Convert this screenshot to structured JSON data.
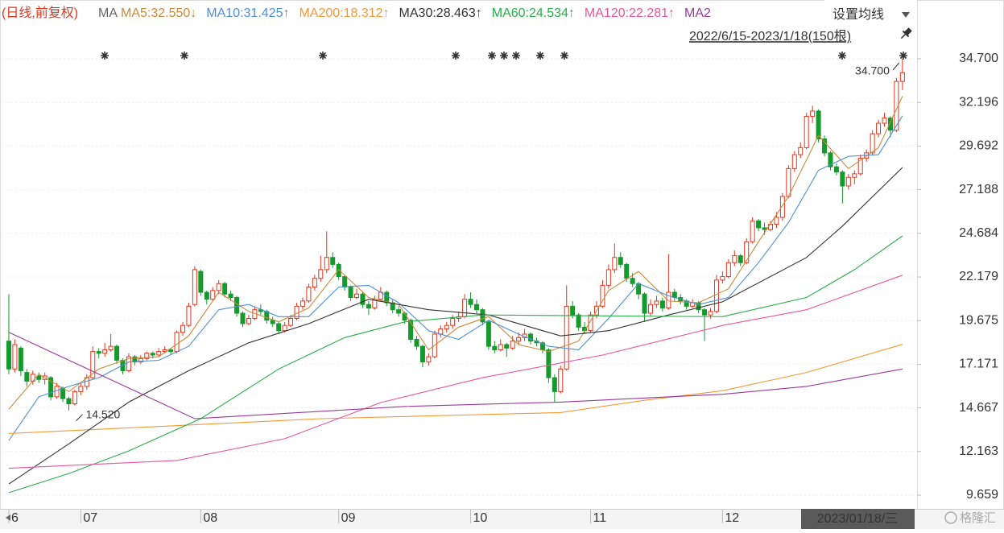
{
  "period_label": "(日线,前复权)",
  "ma_label": "MA",
  "settings_label": "设置均线",
  "range_label": "2022/6/15-2023/1/18(150根)",
  "watermark": "格隆汇",
  "chart_data": {
    "type": "candlestick",
    "cursor_label": "2023/01/18/三",
    "xlim": [
      -0.4,
      151.3
    ],
    "xticks": [
      {
        "value": 0,
        "label": "6"
      },
      {
        "value": 12,
        "label": "07"
      },
      {
        "value": 32,
        "label": "08"
      },
      {
        "value": 55,
        "label": "09"
      },
      {
        "value": 77,
        "label": "10"
      },
      {
        "value": 97,
        "label": "11"
      },
      {
        "value": 119,
        "label": "12"
      }
    ],
    "ylim": [
      8.966,
      35.532
    ],
    "yticks": [
      {
        "value": 34.7,
        "label": "34.700"
      },
      32.196,
      29.692,
      27.188,
      24.684,
      22.179,
      19.675,
      17.171,
      14.667,
      12.163,
      9.659
    ],
    "grid": true,
    "up_color": "#e8341c",
    "down_color": "#159a2c",
    "ohlc": [
      [
        18.5,
        21.2,
        16.6,
        16.9
      ],
      [
        16.9,
        18.6,
        16.7,
        18.3
      ],
      [
        18.1,
        18.2,
        16.5,
        16.8
      ],
      [
        16.7,
        16.9,
        15.9,
        16.2
      ],
      [
        16.2,
        16.8,
        16.0,
        16.6
      ],
      [
        16.5,
        16.7,
        16.1,
        16.3
      ],
      [
        16.3,
        16.7,
        16.0,
        16.5
      ],
      [
        16.4,
        16.5,
        15.1,
        15.3
      ],
      [
        15.3,
        16.1,
        15.2,
        15.9
      ],
      [
        15.8,
        15.9,
        15.0,
        15.2
      ],
      [
        15.2,
        15.3,
        14.52,
        14.9
      ],
      [
        14.9,
        15.7,
        14.8,
        15.6
      ],
      [
        15.6,
        16.1,
        15.4,
        15.9
      ],
      [
        15.9,
        16.6,
        15.7,
        16.4
      ],
      [
        16.4,
        18.2,
        16.3,
        17.9
      ],
      [
        17.9,
        18.1,
        17.5,
        17.8
      ],
      [
        17.8,
        18.4,
        17.6,
        18.0
      ],
      [
        18.0,
        18.9,
        17.9,
        18.2
      ],
      [
        18.2,
        18.3,
        17.2,
        17.4
      ],
      [
        17.4,
        17.5,
        16.6,
        16.8
      ],
      [
        16.8,
        17.8,
        16.7,
        17.6
      ],
      [
        17.6,
        17.7,
        17.1,
        17.3
      ],
      [
        17.3,
        17.7,
        17.2,
        17.5
      ],
      [
        17.5,
        17.9,
        17.4,
        17.8
      ],
      [
        17.8,
        17.9,
        17.5,
        17.7
      ],
      [
        17.7,
        18.1,
        17.6,
        17.9
      ],
      [
        17.9,
        18.2,
        17.8,
        18.0
      ],
      [
        18.0,
        18.1,
        17.7,
        17.9
      ],
      [
        17.9,
        19.1,
        17.8,
        19.0
      ],
      [
        19.0,
        19.6,
        18.8,
        19.4
      ],
      [
        19.4,
        20.7,
        19.3,
        20.5
      ],
      [
        20.6,
        22.8,
        20.5,
        22.6
      ],
      [
        22.5,
        22.6,
        21.1,
        21.3
      ],
      [
        21.3,
        21.4,
        20.6,
        20.9
      ],
      [
        20.9,
        21.6,
        20.8,
        21.4
      ],
      [
        21.4,
        22.0,
        21.2,
        21.8
      ],
      [
        21.8,
        21.9,
        21.0,
        21.2
      ],
      [
        21.2,
        21.4,
        20.8,
        21.0
      ],
      [
        21.0,
        21.1,
        19.9,
        20.1
      ],
      [
        20.1,
        20.2,
        19.3,
        19.5
      ],
      [
        19.5,
        20.0,
        19.4,
        19.8
      ],
      [
        19.8,
        20.5,
        19.7,
        20.3
      ],
      [
        20.3,
        20.6,
        20.0,
        20.2
      ],
      [
        20.2,
        20.3,
        19.5,
        19.7
      ],
      [
        19.7,
        19.9,
        19.3,
        19.5
      ],
      [
        19.5,
        19.6,
        18.9,
        19.1
      ],
      [
        19.1,
        19.6,
        19.0,
        19.4
      ],
      [
        19.4,
        20.0,
        19.3,
        19.8
      ],
      [
        19.8,
        20.7,
        19.7,
        20.5
      ],
      [
        20.5,
        21.0,
        20.3,
        20.8
      ],
      [
        20.8,
        21.8,
        20.7,
        21.6
      ],
      [
        21.6,
        22.3,
        21.4,
        22.1
      ],
      [
        22.1,
        23.4,
        21.9,
        22.6
      ],
      [
        22.6,
        24.8,
        22.4,
        23.3
      ],
      [
        23.3,
        23.6,
        22.7,
        22.9
      ],
      [
        22.9,
        23.0,
        22.0,
        22.2
      ],
      [
        22.2,
        22.3,
        21.4,
        21.6
      ],
      [
        21.6,
        21.7,
        20.8,
        21.0
      ],
      [
        21.0,
        21.5,
        20.9,
        21.2
      ],
      [
        21.2,
        21.3,
        20.4,
        20.6
      ],
      [
        20.6,
        20.8,
        20.0,
        20.4
      ],
      [
        20.4,
        21.1,
        20.3,
        20.9
      ],
      [
        20.9,
        21.6,
        20.8,
        21.3
      ],
      [
        21.3,
        21.4,
        20.5,
        20.7
      ],
      [
        20.7,
        20.9,
        20.1,
        20.3
      ],
      [
        20.3,
        20.5,
        19.9,
        20.1
      ],
      [
        20.1,
        20.2,
        19.5,
        19.7
      ],
      [
        19.7,
        19.8,
        18.4,
        18.6
      ],
      [
        18.6,
        18.8,
        18.0,
        18.2
      ],
      [
        18.2,
        18.3,
        17.0,
        17.3
      ],
      [
        17.3,
        17.8,
        17.1,
        17.6
      ],
      [
        17.6,
        19.1,
        17.5,
        18.9
      ],
      [
        18.9,
        19.4,
        18.7,
        19.2
      ],
      [
        19.2,
        19.6,
        19.0,
        19.4
      ],
      [
        19.4,
        20.0,
        19.2,
        19.8
      ],
      [
        19.8,
        20.2,
        19.6,
        19.9
      ],
      [
        19.9,
        21.2,
        19.8,
        20.9
      ],
      [
        20.9,
        21.3,
        20.4,
        20.6
      ],
      [
        20.6,
        20.9,
        20.1,
        20.3
      ],
      [
        20.3,
        20.4,
        19.4,
        19.6
      ],
      [
        19.6,
        19.7,
        18.0,
        18.2
      ],
      [
        18.2,
        18.5,
        17.8,
        18.0
      ],
      [
        18.0,
        18.6,
        17.9,
        18.3
      ],
      [
        18.3,
        18.4,
        17.6,
        18.1
      ],
      [
        18.1,
        18.8,
        18.0,
        18.5
      ],
      [
        18.5,
        19.0,
        18.3,
        18.7
      ],
      [
        18.7,
        19.2,
        18.5,
        18.9
      ],
      [
        18.9,
        19.0,
        18.3,
        18.5
      ],
      [
        18.5,
        18.7,
        18.2,
        18.4
      ],
      [
        18.4,
        18.5,
        17.8,
        18.0
      ],
      [
        18.0,
        18.1,
        16.1,
        16.4
      ],
      [
        16.4,
        16.6,
        15.0,
        15.6
      ],
      [
        15.6,
        17.1,
        15.5,
        16.9
      ],
      [
        16.9,
        21.7,
        16.8,
        20.5
      ],
      [
        20.5,
        20.8,
        19.8,
        20.0
      ],
      [
        20.0,
        20.1,
        19.1,
        19.3
      ],
      [
        19.3,
        19.6,
        18.9,
        19.1
      ],
      [
        19.1,
        20.2,
        19.0,
        20.0
      ],
      [
        20.0,
        20.8,
        19.8,
        20.5
      ],
      [
        20.5,
        22.0,
        20.4,
        21.7
      ],
      [
        21.7,
        22.9,
        21.5,
        22.6
      ],
      [
        22.6,
        24.1,
        22.4,
        23.3
      ],
      [
        23.3,
        23.6,
        22.7,
        22.9
      ],
      [
        22.9,
        23.0,
        21.9,
        22.1
      ],
      [
        22.1,
        22.4,
        21.6,
        21.8
      ],
      [
        21.8,
        21.9,
        20.9,
        21.2
      ],
      [
        21.2,
        21.3,
        19.6,
        20.1
      ],
      [
        20.1,
        20.9,
        19.9,
        20.6
      ],
      [
        20.6,
        21.1,
        20.4,
        20.8
      ],
      [
        20.8,
        21.0,
        20.2,
        20.4
      ],
      [
        20.4,
        23.5,
        20.3,
        21.3
      ],
      [
        21.3,
        21.5,
        20.8,
        21.0
      ],
      [
        21.0,
        21.2,
        20.6,
        20.8
      ],
      [
        20.8,
        20.9,
        20.3,
        20.5
      ],
      [
        20.5,
        20.9,
        20.4,
        20.7
      ],
      [
        20.7,
        20.8,
        20.1,
        20.3
      ],
      [
        20.3,
        20.4,
        18.5,
        20.0
      ],
      [
        20.0,
        20.4,
        19.8,
        20.2
      ],
      [
        20.2,
        22.3,
        20.1,
        22.0
      ],
      [
        22.0,
        22.5,
        21.8,
        22.2
      ],
      [
        22.2,
        23.2,
        22.1,
        23.0
      ],
      [
        23.0,
        23.7,
        22.8,
        23.4
      ],
      [
        23.4,
        23.5,
        22.8,
        23.0
      ],
      [
        23.0,
        24.4,
        22.9,
        24.2
      ],
      [
        24.2,
        25.6,
        24.1,
        25.4
      ],
      [
        25.4,
        25.5,
        24.8,
        25.0
      ],
      [
        25.0,
        25.3,
        24.6,
        24.9
      ],
      [
        24.9,
        25.4,
        24.8,
        25.2
      ],
      [
        25.2,
        25.9,
        25.0,
        25.6
      ],
      [
        25.6,
        27.0,
        25.4,
        26.8
      ],
      [
        26.8,
        28.6,
        26.7,
        28.4
      ],
      [
        28.4,
        29.4,
        28.2,
        29.2
      ],
      [
        29.2,
        29.9,
        29.0,
        29.6
      ],
      [
        29.6,
        31.6,
        29.5,
        31.4
      ],
      [
        31.4,
        32.0,
        31.0,
        31.7
      ],
      [
        31.7,
        31.8,
        29.9,
        30.1
      ],
      [
        30.1,
        30.3,
        29.1,
        29.3
      ],
      [
        29.3,
        29.4,
        28.3,
        28.5
      ],
      [
        28.5,
        28.7,
        28.0,
        28.2
      ],
      [
        28.2,
        28.3,
        26.4,
        27.4
      ],
      [
        27.4,
        28.1,
        27.2,
        27.9
      ],
      [
        27.9,
        28.3,
        27.5,
        28.1
      ],
      [
        28.1,
        29.2,
        28.0,
        29.0
      ],
      [
        29.0,
        29.5,
        28.8,
        29.3
      ],
      [
        29.3,
        30.6,
        29.2,
        30.4
      ],
      [
        30.4,
        31.2,
        30.2,
        31.0
      ],
      [
        31.0,
        31.6,
        30.8,
        31.3
      ],
      [
        31.3,
        31.4,
        30.2,
        30.6
      ],
      [
        30.6,
        33.6,
        30.5,
        33.4
      ],
      [
        33.4,
        34.7,
        32.9,
        33.9
      ]
    ],
    "series": [
      {
        "name": "MA5:32.550↓",
        "color": "#c98a3a",
        "x": [
          0,
          5,
          10,
          15,
          20,
          25,
          30,
          35,
          40,
          45,
          50,
          55,
          60,
          65,
          70,
          75,
          80,
          85,
          90,
          95,
          100,
          105,
          110,
          115,
          120,
          125,
          130,
          135,
          140,
          145,
          149
        ],
        "values": [
          14.6,
          16.6,
          15.6,
          16.9,
          17.5,
          17.6,
          18.8,
          21.3,
          20.2,
          19.6,
          20.4,
          22.6,
          21.0,
          20.6,
          18.0,
          19.3,
          19.9,
          18.3,
          17.9,
          18.5,
          21.4,
          22.5,
          20.8,
          20.7,
          21.5,
          24.2,
          26.8,
          30.3,
          28.4,
          29.6,
          32.55
        ]
      },
      {
        "name": "MA10:31.425↑",
        "color": "#4f8fd8",
        "x": [
          0,
          5,
          10,
          15,
          20,
          25,
          30,
          35,
          40,
          45,
          50,
          55,
          60,
          65,
          70,
          75,
          80,
          85,
          90,
          95,
          100,
          105,
          110,
          115,
          120,
          125,
          130,
          135,
          140,
          145,
          149
        ],
        "values": [
          12.8,
          15.3,
          15.9,
          16.4,
          17.3,
          17.4,
          18.2,
          20.3,
          20.6,
          19.9,
          19.9,
          21.6,
          21.7,
          20.7,
          19.1,
          18.6,
          19.7,
          18.9,
          18.2,
          18.0,
          19.8,
          21.8,
          21.1,
          20.6,
          21.0,
          23.0,
          25.3,
          28.3,
          29.1,
          29.2,
          31.425
        ]
      },
      {
        "name": "MA200:18.312↑",
        "color": "#f29a38",
        "x": [
          0,
          25,
          52,
          92,
          106,
          119,
          133,
          149
        ],
        "values": [
          13.2,
          13.6,
          14.05,
          14.4,
          15.1,
          15.65,
          16.7,
          18.312
        ]
      },
      {
        "name": "MA30:28.463↑",
        "color": "#333333",
        "x": [
          0,
          10,
          20,
          30,
          40,
          50,
          60,
          70,
          80,
          92,
          100,
          110,
          119,
          133,
          139,
          149
        ],
        "values": [
          10.3,
          12.6,
          15.0,
          16.8,
          18.4,
          19.5,
          20.9,
          20.3,
          20.0,
          18.8,
          19.1,
          20.0,
          20.75,
          23.3,
          25.1,
          28.463
        ]
      },
      {
        "name": "MA60:24.534↑",
        "color": "#2aae4a",
        "x": [
          0,
          10,
          20,
          32,
          45,
          56,
          66,
          79,
          99,
          119,
          133,
          141,
          149
        ],
        "values": [
          9.8,
          10.9,
          12.2,
          14.05,
          16.9,
          18.7,
          19.6,
          20.0,
          19.95,
          19.9,
          21.0,
          22.6,
          24.534
        ]
      },
      {
        "name": "MA120:22.281↑",
        "color": "#e956a0",
        "x": [
          0,
          28,
          46,
          62,
          79,
          99,
          119,
          133,
          149
        ],
        "values": [
          11.2,
          11.65,
          12.9,
          14.97,
          16.4,
          17.7,
          19.4,
          20.3,
          22.281
        ]
      },
      {
        "name": "MA2",
        "color": "#9b3a9b",
        "x": [
          0,
          31,
          66,
          92,
          119,
          133,
          149
        ],
        "values": [
          19.0,
          14.05,
          14.75,
          15.0,
          15.45,
          15.9,
          16.9
        ]
      }
    ],
    "annotations": [
      {
        "x": 149,
        "value": 34.7,
        "label": "34.700"
      },
      {
        "x": 10,
        "value": 14.52,
        "label": "14.520"
      }
    ]
  }
}
